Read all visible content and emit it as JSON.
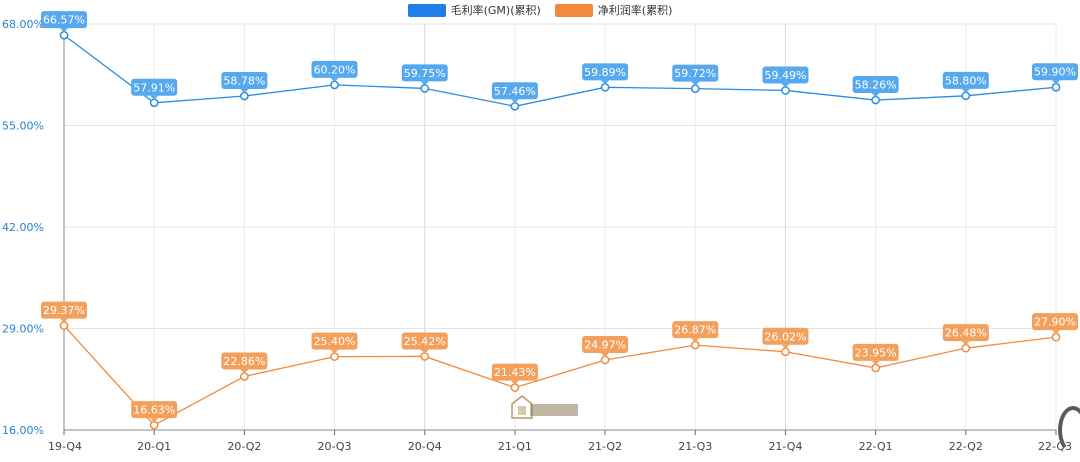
{
  "chart_data": {
    "type": "line",
    "categories": [
      "19-Q4",
      "20-Q1",
      "20-Q2",
      "20-Q3",
      "20-Q4",
      "21-Q1",
      "21-Q2",
      "21-Q3",
      "21-Q4",
      "22-Q1",
      "22-Q2",
      "22-Q3"
    ],
    "ylim": [
      16,
      68
    ],
    "y_ticks": [
      "16.00%",
      "29.00%",
      "42.00%",
      "55.00%",
      "68.00%"
    ],
    "legend_position": "top-center",
    "grid": true,
    "series": [
      {
        "name": "毛利率(GM)(累积)",
        "color": "#2b8ce0",
        "label_bg": "#56a8ef",
        "values": [
          66.57,
          57.91,
          58.78,
          60.2,
          59.75,
          57.46,
          59.89,
          59.72,
          59.49,
          58.26,
          58.8,
          59.9
        ],
        "labels": [
          "66.57%",
          "57.91%",
          "58.78%",
          "60.20%",
          "59.75%",
          "57.46%",
          "59.89%",
          "59.72%",
          "59.49%",
          "58.26%",
          "58.80%",
          "59.90%"
        ]
      },
      {
        "name": "净利润率(累积)",
        "color": "#f28a3c",
        "label_bg": "#f3a05c",
        "values": [
          29.37,
          16.63,
          22.86,
          25.4,
          25.42,
          21.43,
          24.97,
          26.87,
          26.02,
          23.95,
          26.48,
          27.9
        ],
        "labels": [
          "29.37%",
          "16.63%",
          "22.86%",
          "25.40%",
          "25.42%",
          "21.43%",
          "24.97%",
          "26.87%",
          "26.02%",
          "23.95%",
          "26.48%",
          "27.90%"
        ]
      }
    ]
  },
  "legend": {
    "gm": "毛利率(GM)(累积)",
    "net": "净利润率(累积)",
    "gm_color": "#1f7ee8",
    "net_color": "#f28a3c"
  }
}
